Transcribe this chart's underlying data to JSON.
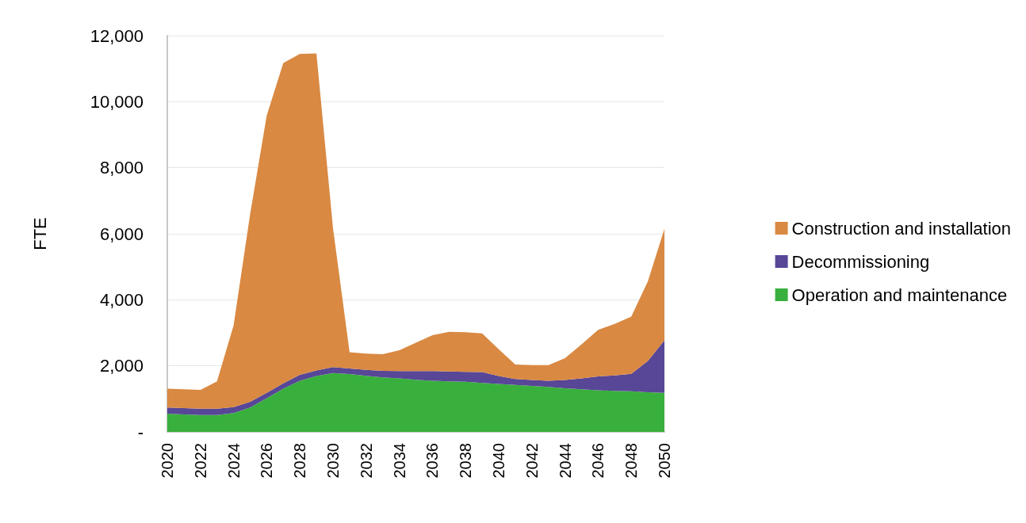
{
  "chart_data": {
    "type": "area",
    "stacked": true,
    "ylabel": "FTE",
    "categories": [
      "2020",
      null,
      "2022",
      null,
      "2024",
      null,
      "2026",
      null,
      "2028",
      null,
      "2030",
      null,
      "2032",
      null,
      "2034",
      null,
      "2036",
      null,
      "2038",
      null,
      "2040",
      null,
      "2042",
      null,
      "2044",
      null,
      "2046",
      null,
      "2048",
      null,
      "2050"
    ],
    "series": [
      {
        "name": "Operation and maintenance",
        "color": "#39b03d",
        "values": [
          550,
          530,
          510,
          510,
          570,
          740,
          1020,
          1310,
          1550,
          1690,
          1780,
          1750,
          1700,
          1650,
          1620,
          1580,
          1550,
          1530,
          1520,
          1480,
          1450,
          1420,
          1390,
          1360,
          1320,
          1290,
          1260,
          1240,
          1230,
          1200,
          1180
        ]
      },
      {
        "name": "Decommissioning",
        "color": "#574796",
        "values": [
          190,
          190,
          190,
          190,
          180,
          170,
          160,
          160,
          180,
          170,
          180,
          170,
          180,
          200,
          220,
          260,
          290,
          300,
          300,
          330,
          240,
          180,
          180,
          190,
          250,
          330,
          420,
          470,
          530,
          950,
          1590
        ]
      },
      {
        "name": "Construction and installation",
        "color": "#d98942",
        "values": [
          570,
          570,
          570,
          830,
          2470,
          5690,
          8400,
          9700,
          9720,
          9600,
          4210,
          490,
          490,
          500,
          630,
          860,
          1090,
          1200,
          1200,
          1170,
          810,
          440,
          450,
          470,
          660,
          1030,
          1410,
          1560,
          1730,
          2410,
          3380
        ]
      }
    ],
    "ylim": [
      0,
      12000
    ],
    "yticks": [
      {
        "value": 0,
        "label": "-"
      },
      {
        "value": 2000,
        "label": "2,000"
      },
      {
        "value": 4000,
        "label": "4,000"
      },
      {
        "value": 6000,
        "label": "6,000"
      },
      {
        "value": 8000,
        "label": "8,000"
      },
      {
        "value": 10000,
        "label": "10,000"
      },
      {
        "value": 12000,
        "label": "12,000"
      }
    ],
    "grid": "y",
    "legend": "right"
  }
}
